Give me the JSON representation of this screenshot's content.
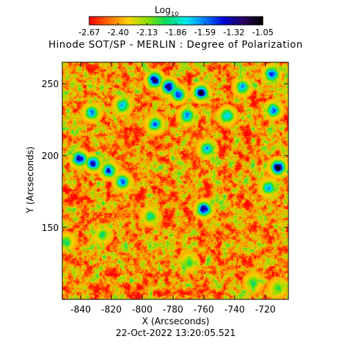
{
  "chart_data": {
    "type": "heatmap",
    "title": "Hinode SOT/SP - MERLIN : Degree of Polarization",
    "xlabel": "X (Arcseconds)",
    "ylabel": "Y (Arcseconds)",
    "xlim": [
      -852,
      -705
    ],
    "ylim": [
      100,
      265
    ],
    "x_ticks": [
      -840,
      -820,
      -800,
      -780,
      -760,
      -740,
      -720
    ],
    "y_ticks": [
      150,
      200,
      250
    ],
    "colorbar": {
      "label": "Log",
      "label_subscript": "10",
      "range": [
        -2.67,
        -1.05
      ],
      "ticks": [
        "-2.67",
        "-2.40",
        "-2.13",
        "-1.86",
        "-1.59",
        "-1.32",
        "-1.05"
      ],
      "colormap": "rainbow",
      "stops": [
        "#ff0000",
        "#ff6a00",
        "#ffd000",
        "#90e000",
        "#00dd60",
        "#00e8e8",
        "#0078ff",
        "#0000d0",
        "#28005a",
        "#000000"
      ]
    },
    "background_level": -2.4,
    "features": [
      {
        "x": -792,
        "y": 253,
        "peak": -1.12
      },
      {
        "x": -783,
        "y": 248,
        "peak": -1.18
      },
      {
        "x": -777,
        "y": 243,
        "peak": -1.45
      },
      {
        "x": -762,
        "y": 244,
        "peak": -1.2
      },
      {
        "x": -771,
        "y": 228,
        "peak": -1.55
      },
      {
        "x": -792,
        "y": 222,
        "peak": -1.6
      },
      {
        "x": -813,
        "y": 235,
        "peak": -1.62
      },
      {
        "x": -833,
        "y": 230,
        "peak": -1.55
      },
      {
        "x": -841,
        "y": 198,
        "peak": -1.22
      },
      {
        "x": -832,
        "y": 195,
        "peak": -1.35
      },
      {
        "x": -822,
        "y": 190,
        "peak": -1.45
      },
      {
        "x": -813,
        "y": 182,
        "peak": -1.55
      },
      {
        "x": -758,
        "y": 205,
        "peak": -1.6
      },
      {
        "x": -745,
        "y": 228,
        "peak": -1.62
      },
      {
        "x": -735,
        "y": 248,
        "peak": -1.62
      },
      {
        "x": -716,
        "y": 257,
        "peak": -1.4
      },
      {
        "x": -715,
        "y": 232,
        "peak": -1.55
      },
      {
        "x": -712,
        "y": 192,
        "peak": -1.12
      },
      {
        "x": -718,
        "y": 178,
        "peak": -1.65
      },
      {
        "x": -760,
        "y": 163,
        "peak": -1.25
      },
      {
        "x": -795,
        "y": 158,
        "peak": -1.85
      },
      {
        "x": -826,
        "y": 145,
        "peak": -1.95
      },
      {
        "x": -850,
        "y": 140,
        "peak": -1.9
      },
      {
        "x": -770,
        "y": 126,
        "peak": -1.95
      },
      {
        "x": -728,
        "y": 112,
        "peak": -1.9
      },
      {
        "x": -712,
        "y": 108,
        "peak": -1.95
      }
    ]
  },
  "footer": {
    "timestamp": "22-Oct-2022 13:20:05.521"
  }
}
